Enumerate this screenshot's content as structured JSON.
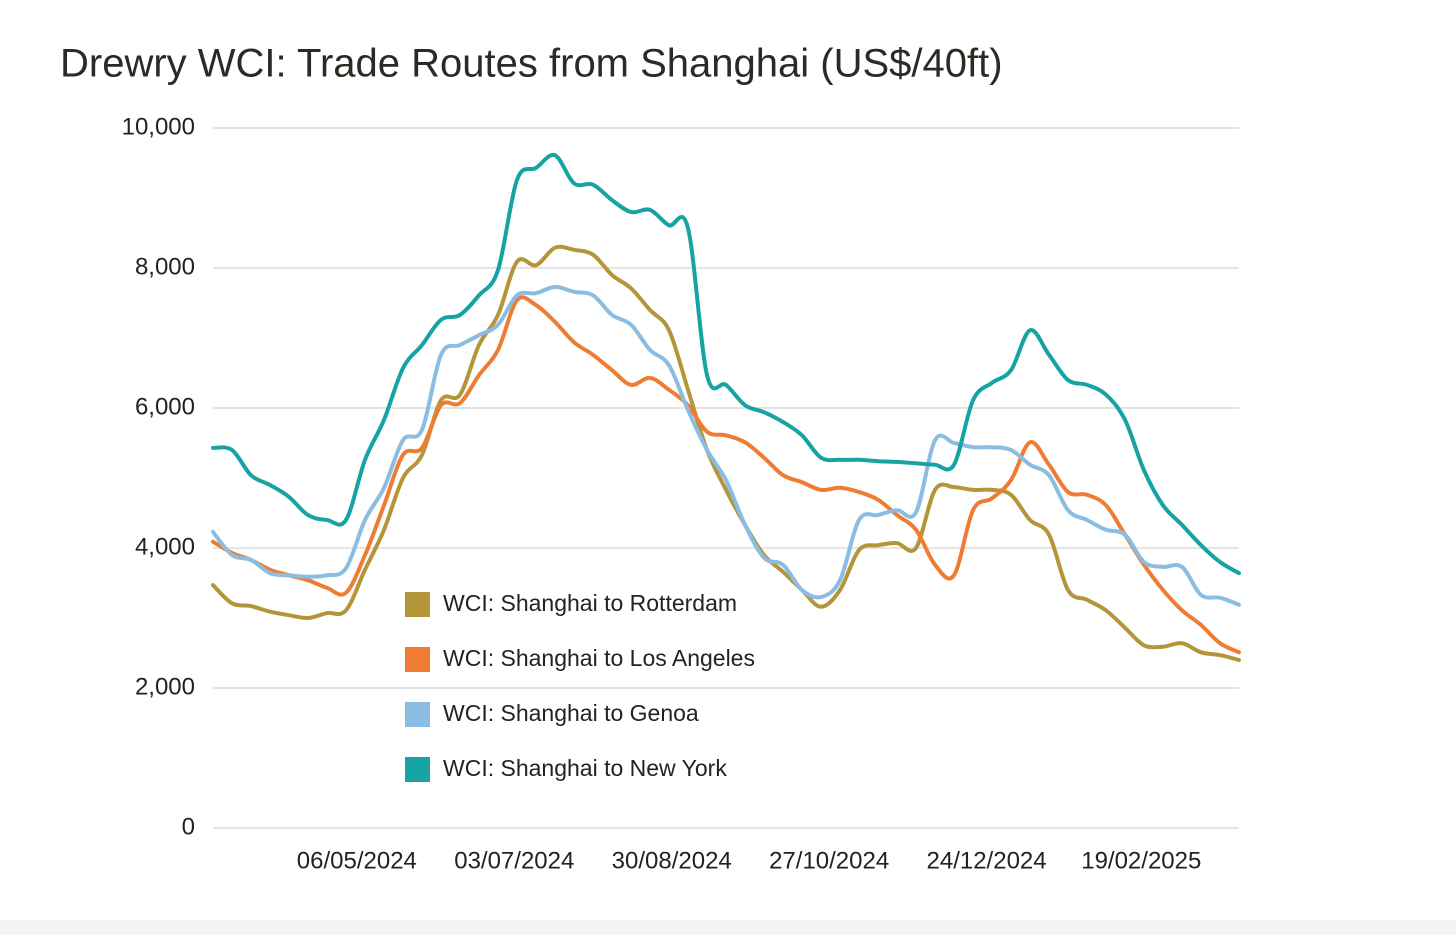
{
  "chart_data": {
    "type": "line",
    "title": "Drewry WCI: Trade Routes from Shanghai (US$/40ft)",
    "x": [
      "14/03/2024",
      "21/03/2024",
      "28/03/2024",
      "04/04/2024",
      "11/04/2024",
      "18/04/2024",
      "25/04/2024",
      "02/05/2024",
      "09/05/2024",
      "16/05/2024",
      "23/05/2024",
      "30/05/2024",
      "06/06/2024",
      "13/06/2024",
      "20/06/2024",
      "27/06/2024",
      "04/07/2024",
      "11/07/2024",
      "18/07/2024",
      "25/07/2024",
      "01/08/2024",
      "08/08/2024",
      "15/08/2024",
      "22/08/2024",
      "29/08/2024",
      "05/09/2024",
      "12/09/2024",
      "19/09/2024",
      "26/09/2024",
      "03/10/2024",
      "10/10/2024",
      "17/10/2024",
      "24/10/2024",
      "31/10/2024",
      "07/11/2024",
      "14/11/2024",
      "21/11/2024",
      "28/11/2024",
      "05/12/2024",
      "12/12/2024",
      "19/12/2024",
      "26/12/2024",
      "02/01/2025",
      "09/01/2025",
      "16/01/2025",
      "23/01/2025",
      "30/01/2025",
      "06/02/2025",
      "13/02/2025",
      "20/02/2025",
      "27/02/2025",
      "06/03/2025",
      "13/03/2025",
      "20/03/2025",
      "27/03/2025"
    ],
    "xlim": [
      "14/03/2024",
      "27/03/2025"
    ],
    "xticks": [
      "06/05/2024",
      "03/07/2024",
      "30/08/2024",
      "27/10/2024",
      "24/12/2024",
      "19/02/2025"
    ],
    "ylim": [
      0,
      10000
    ],
    "yticks": [
      0,
      {
        "value": 2000,
        "label": "2,000"
      },
      {
        "value": 4000,
        "label": "4,000"
      },
      {
        "value": 6000,
        "label": "6,000"
      },
      {
        "value": 8000,
        "label": "8,000"
      },
      {
        "value": 10000,
        "label": "10,000"
      }
    ],
    "grid": true,
    "legend_position": "lower center",
    "series": [
      {
        "name": "WCI: Shanghai to Rotterdam",
        "color": "#b5953a",
        "values": [
          3470,
          3210,
          3170,
          3090,
          3040,
          3000,
          3070,
          3110,
          3690,
          4260,
          5000,
          5330,
          6110,
          6190,
          6900,
          7330,
          8090,
          8040,
          8290,
          8260,
          8190,
          7900,
          7710,
          7400,
          7110,
          6260,
          5400,
          4830,
          4330,
          3900,
          3660,
          3400,
          3160,
          3400,
          3970,
          4040,
          4070,
          4000,
          4830,
          4870,
          4830,
          4830,
          4760,
          4400,
          4190,
          3400,
          3260,
          3110,
          2860,
          2610,
          2590,
          2640,
          2510,
          2470,
          2400
        ]
      },
      {
        "name": "WCI: Shanghai to Los Angeles",
        "color": "#ee7d33",
        "values": [
          4090,
          3930,
          3830,
          3690,
          3610,
          3540,
          3430,
          3360,
          3900,
          4610,
          5330,
          5430,
          6040,
          6070,
          6470,
          6830,
          7540,
          7470,
          7230,
          6940,
          6760,
          6540,
          6330,
          6430,
          6260,
          6040,
          5660,
          5610,
          5510,
          5290,
          5040,
          4940,
          4830,
          4860,
          4800,
          4690,
          4470,
          4260,
          3760,
          3610,
          4540,
          4710,
          4970,
          5510,
          5190,
          4800,
          4760,
          4610,
          4190,
          3760,
          3400,
          3110,
          2900,
          2640,
          2510
        ]
      },
      {
        "name": "WCI: Shanghai to Genoa",
        "color": "#8bbde3",
        "values": [
          4230,
          3900,
          3830,
          3640,
          3610,
          3590,
          3610,
          3710,
          4400,
          4860,
          5540,
          5690,
          6760,
          6900,
          7040,
          7190,
          7610,
          7640,
          7730,
          7660,
          7610,
          7330,
          7190,
          6830,
          6610,
          5970,
          5400,
          4970,
          4330,
          3860,
          3760,
          3400,
          3300,
          3540,
          4400,
          4470,
          4540,
          4510,
          5540,
          5500,
          5440,
          5440,
          5400,
          5190,
          5040,
          4540,
          4400,
          4260,
          4190,
          3800,
          3730,
          3730,
          3330,
          3290,
          3190
        ]
      },
      {
        "name": "WCI: Shanghai to New York",
        "color": "#17a2a4",
        "values": [
          5430,
          5400,
          5040,
          4900,
          4730,
          4470,
          4400,
          4400,
          5260,
          5830,
          6570,
          6900,
          7260,
          7330,
          7610,
          7970,
          9260,
          9430,
          9610,
          9210,
          9190,
          8970,
          8800,
          8830,
          8610,
          8570,
          6470,
          6330,
          6040,
          5940,
          5800,
          5610,
          5290,
          5260,
          5260,
          5240,
          5230,
          5210,
          5190,
          5190,
          6110,
          6360,
          6540,
          7110,
          6760,
          6400,
          6330,
          6190,
          5830,
          5110,
          4610,
          4330,
          4040,
          3800,
          3640
        ]
      }
    ]
  }
}
